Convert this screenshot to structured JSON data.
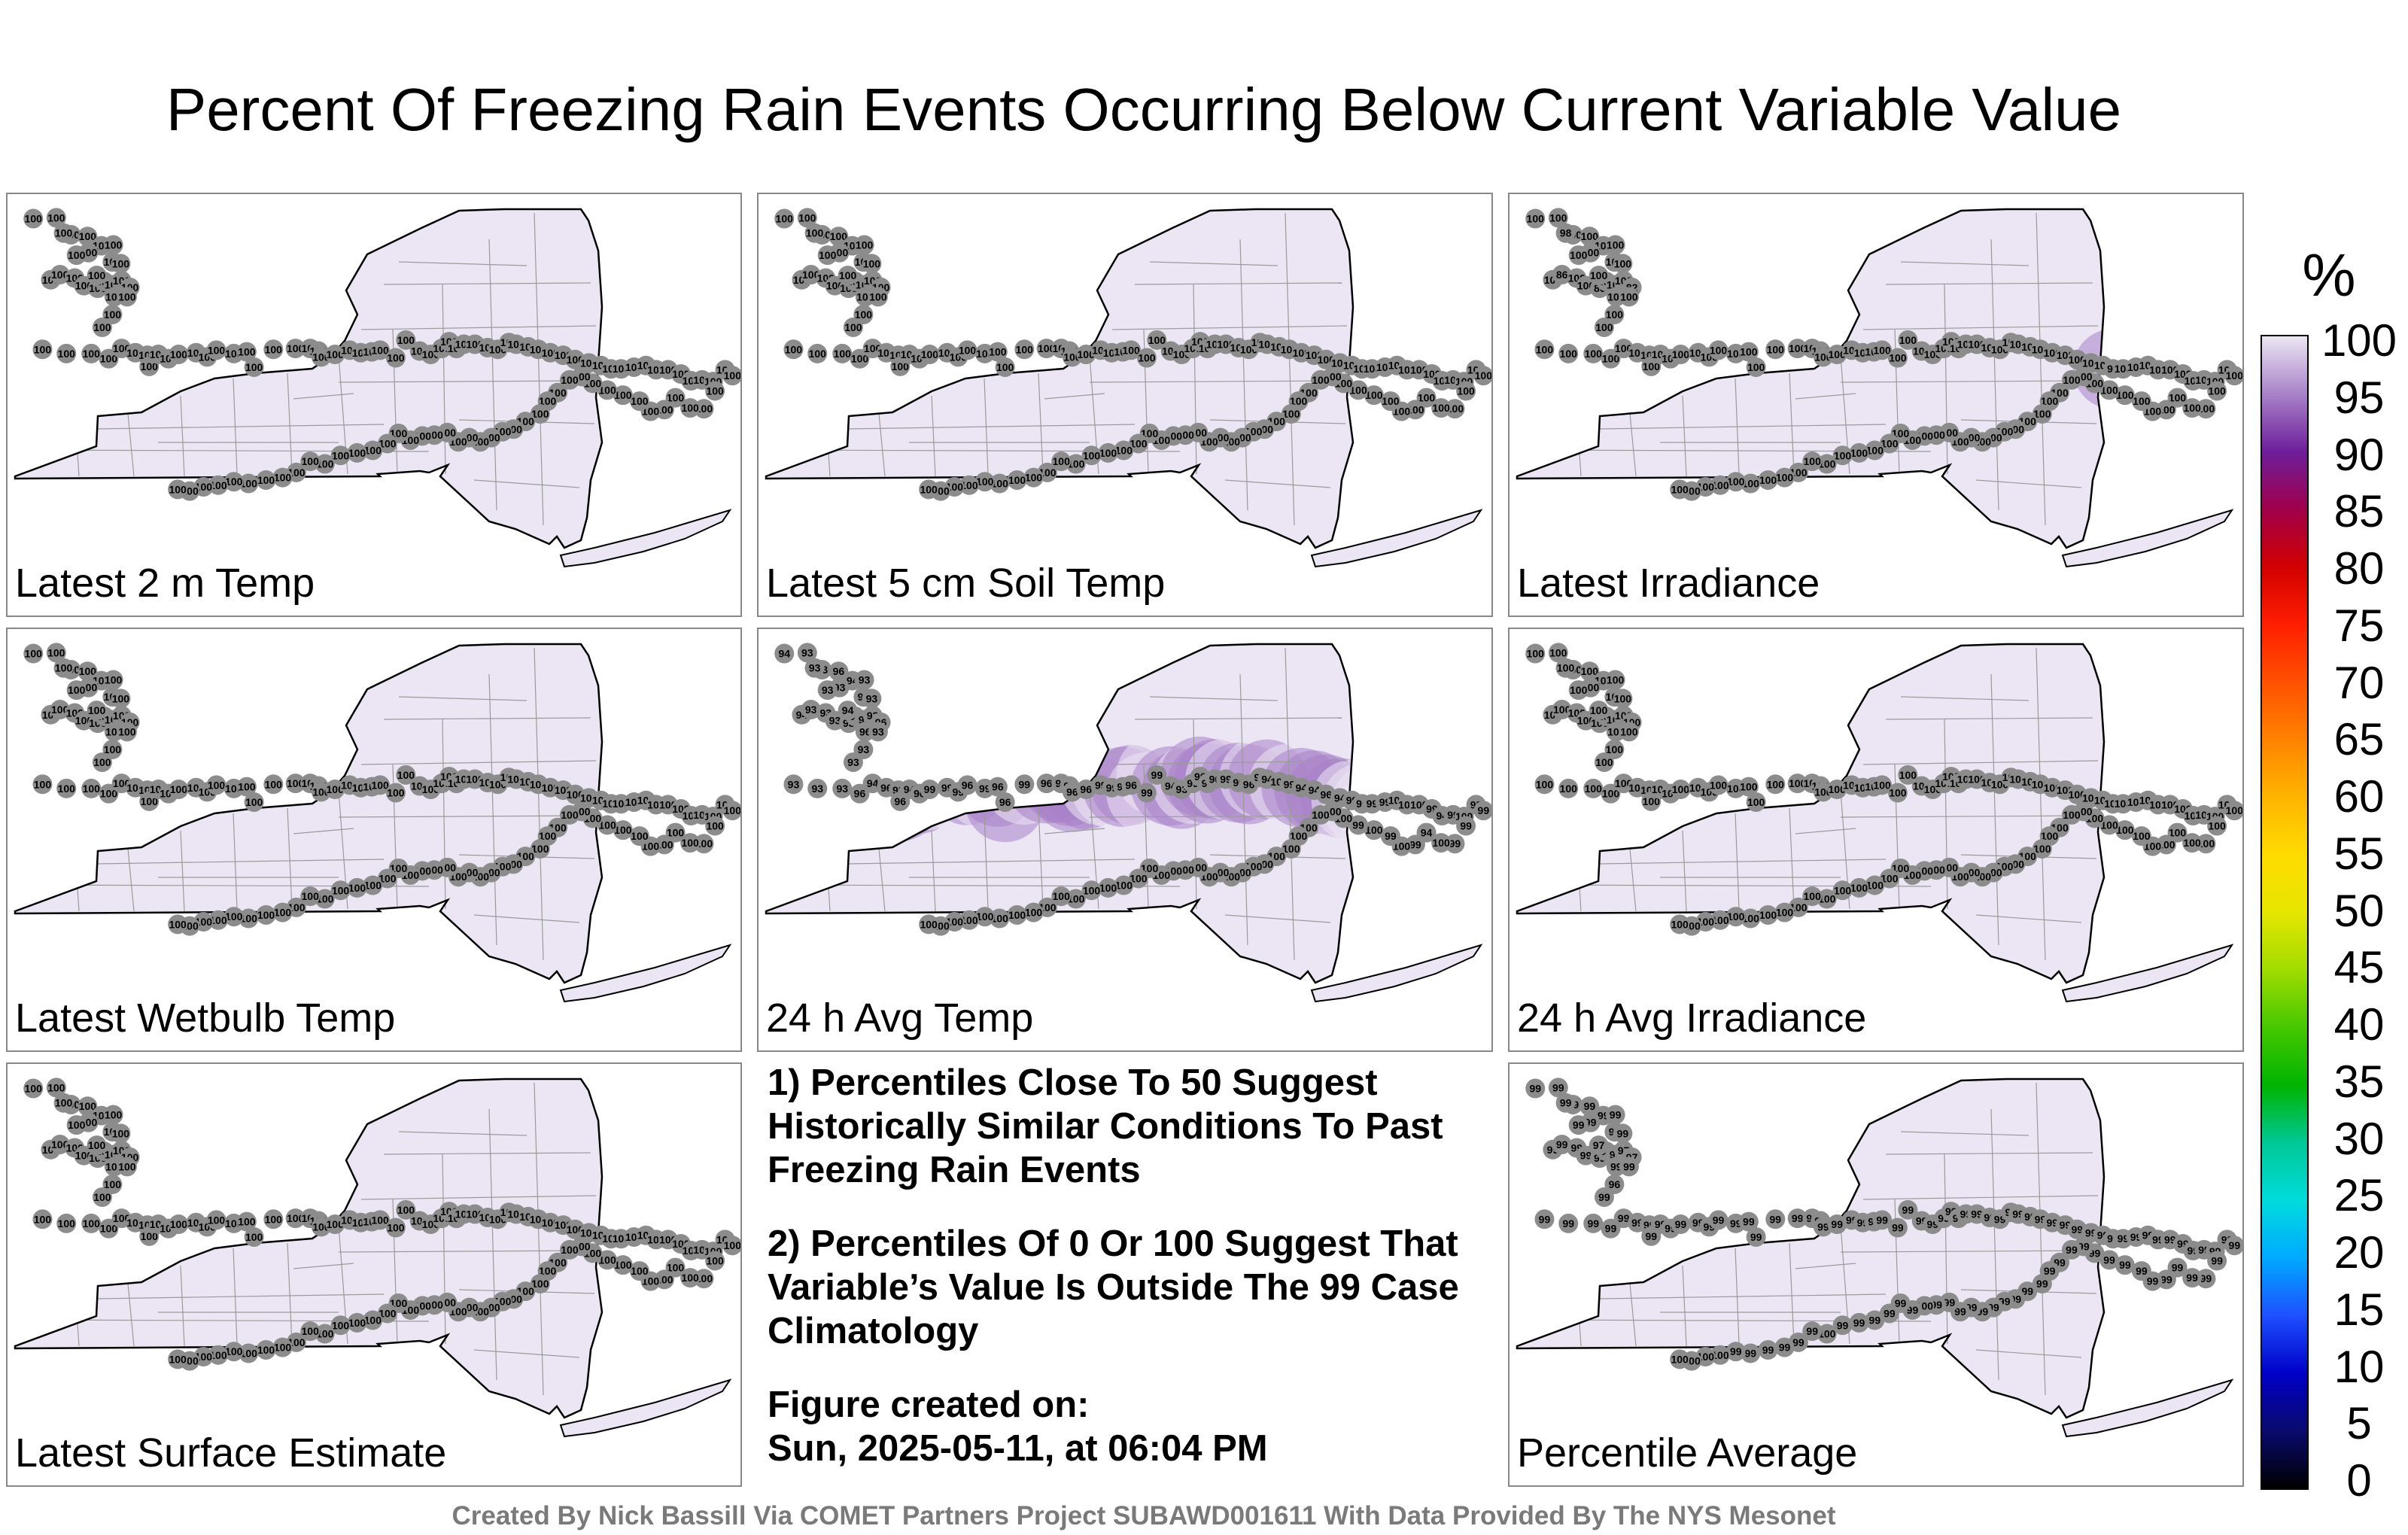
{
  "title": "Percent Of Freezing Rain Events Occurring Below Current Variable Value",
  "panels": [
    {
      "label": "Latest 2 m Temp",
      "values": [
        100,
        100,
        100,
        100,
        100,
        100,
        100,
        100,
        100,
        100,
        100,
        100,
        100,
        100,
        100,
        100,
        100,
        100,
        100,
        100,
        100,
        100,
        100,
        100,
        100,
        100,
        100,
        100,
        100,
        100,
        100,
        100,
        100,
        100,
        100,
        100,
        100,
        100,
        100,
        100,
        100,
        100,
        100,
        100,
        100,
        100,
        100,
        100,
        100,
        100,
        100,
        100,
        100,
        100,
        100,
        100,
        100,
        100,
        100,
        100,
        100,
        100,
        100,
        100,
        100,
        100,
        100,
        100,
        100,
        100,
        100,
        100,
        100,
        100,
        100,
        100,
        100,
        100,
        100,
        100,
        100,
        100,
        100,
        100,
        100,
        100,
        100,
        100,
        100,
        100,
        100,
        100,
        100,
        100,
        100,
        100,
        100,
        100,
        100,
        100,
        100,
        100,
        100,
        100,
        100,
        100,
        100,
        100,
        100,
        100,
        100,
        100,
        100,
        100,
        100,
        100,
        100,
        100,
        100,
        100,
        100,
        100,
        100,
        100,
        100,
        100
      ]
    },
    {
      "label": "Latest 5 cm Soil Temp",
      "values": [
        100,
        100,
        100,
        100,
        100,
        100,
        100,
        100,
        100,
        100,
        100,
        100,
        100,
        100,
        100,
        100,
        100,
        100,
        100,
        100,
        100,
        100,
        100,
        100,
        100,
        100,
        100,
        100,
        100,
        100,
        100,
        100,
        100,
        100,
        100,
        100,
        100,
        100,
        100,
        100,
        100,
        100,
        100,
        100,
        100,
        100,
        100,
        100,
        100,
        100,
        100,
        100,
        100,
        100,
        100,
        100,
        100,
        100,
        100,
        100,
        100,
        100,
        100,
        100,
        100,
        100,
        100,
        100,
        100,
        100,
        100,
        100,
        100,
        100,
        100,
        100,
        100,
        100,
        100,
        100,
        100,
        100,
        100,
        100,
        100,
        100,
        100,
        100,
        100,
        100,
        100,
        100,
        100,
        100,
        100,
        100,
        100,
        100,
        100,
        100,
        100,
        100,
        100,
        100,
        100,
        100,
        100,
        100,
        100,
        100,
        100,
        100,
        100,
        100,
        100,
        100,
        100,
        100,
        100,
        100,
        100,
        100,
        100,
        100,
        100,
        100
      ]
    },
    {
      "label": "Latest Irradiance",
      "values": [
        100,
        100,
        100,
        100,
        100,
        100,
        100,
        100,
        98,
        100,
        100,
        86,
        100,
        100,
        86,
        100,
        100,
        100,
        82,
        100,
        100,
        100,
        100,
        100,
        100,
        100,
        100,
        100,
        100,
        100,
        100,
        100,
        100,
        100,
        100,
        100,
        100,
        100,
        100,
        100,
        100,
        100,
        100,
        100,
        100,
        100,
        100,
        100,
        100,
        100,
        100,
        100,
        100,
        100,
        100,
        100,
        100,
        100,
        100,
        100,
        100,
        100,
        100,
        100,
        100,
        100,
        100,
        100,
        100,
        100,
        100,
        100,
        96,
        100,
        100,
        100,
        100,
        100,
        100,
        100,
        100,
        100,
        100,
        100,
        100,
        100,
        100,
        100,
        100,
        100,
        100,
        100,
        100,
        100,
        100,
        100,
        100,
        100,
        100,
        100,
        100,
        100,
        100,
        100,
        100,
        100,
        100,
        100,
        100,
        100,
        100,
        100,
        100,
        100,
        100,
        100,
        100,
        100,
        100,
        100,
        100,
        100,
        100,
        100,
        100,
        100
      ]
    },
    {
      "label": "Latest Wetbulb Temp",
      "values": [
        100,
        100,
        100,
        100,
        100,
        100,
        100,
        100,
        100,
        100,
        100,
        100,
        100,
        100,
        100,
        100,
        100,
        100,
        100,
        100,
        100,
        100,
        100,
        100,
        100,
        100,
        100,
        100,
        100,
        100,
        100,
        100,
        100,
        100,
        100,
        100,
        100,
        100,
        100,
        100,
        100,
        100,
        100,
        100,
        100,
        100,
        100,
        100,
        100,
        100,
        100,
        100,
        100,
        100,
        100,
        100,
        100,
        100,
        100,
        100,
        100,
        100,
        100,
        100,
        100,
        100,
        100,
        100,
        100,
        100,
        100,
        100,
        100,
        100,
        100,
        100,
        100,
        100,
        100,
        100,
        100,
        100,
        100,
        100,
        100,
        100,
        100,
        100,
        100,
        100,
        100,
        100,
        100,
        100,
        100,
        100,
        100,
        100,
        100,
        100,
        100,
        100,
        100,
        100,
        100,
        100,
        100,
        100,
        100,
        100,
        100,
        100,
        100,
        100,
        100,
        100,
        100,
        100,
        100,
        100,
        100,
        100,
        100,
        100,
        100,
        100
      ]
    },
    {
      "label": "24 h Avg Temp",
      "values": [
        94,
        93,
        93,
        96,
        94,
        93,
        93,
        93,
        93,
        93,
        94,
        93,
        93,
        93,
        93,
        94,
        93,
        93,
        96,
        93,
        94,
        96,
        93,
        93,
        93,
        93,
        93,
        93,
        96,
        94,
        96,
        93,
        96,
        94,
        96,
        99,
        99,
        99,
        96,
        99,
        96,
        96,
        99,
        96,
        93,
        96,
        96,
        96,
        99,
        99,
        96,
        96,
        99,
        99,
        94,
        93,
        99,
        96,
        96,
        96,
        99,
        96,
        96,
        99,
        94,
        100,
        99,
        94,
        94,
        96,
        94,
        99,
        99,
        99,
        99,
        100,
        100,
        100,
        99,
        94,
        99,
        100,
        99,
        99,
        99,
        99,
        100,
        94,
        99,
        100,
        99,
        100,
        99,
        100,
        100,
        100,
        100,
        100,
        100,
        100,
        100,
        100,
        100,
        100,
        100,
        100,
        100,
        100,
        100,
        100,
        100,
        100,
        100,
        100,
        100,
        100,
        100,
        100,
        100,
        100,
        100,
        100,
        100,
        100,
        100,
        100
      ]
    },
    {
      "label": "24 h Avg Irradiance",
      "values": [
        100,
        100,
        100,
        100,
        100,
        100,
        100,
        100,
        100,
        100,
        100,
        100,
        100,
        100,
        100,
        100,
        100,
        100,
        100,
        100,
        100,
        100,
        100,
        100,
        100,
        100,
        100,
        100,
        100,
        100,
        100,
        100,
        100,
        100,
        100,
        100,
        100,
        100,
        100,
        100,
        100,
        100,
        100,
        100,
        100,
        100,
        100,
        100,
        100,
        100,
        100,
        100,
        100,
        100,
        100,
        100,
        100,
        100,
        100,
        100,
        100,
        100,
        100,
        100,
        100,
        100,
        100,
        100,
        100,
        100,
        100,
        100,
        100,
        100,
        100,
        100,
        100,
        100,
        100,
        100,
        100,
        100,
        100,
        100,
        100,
        100,
        100,
        100,
        100,
        100,
        100,
        100,
        100,
        100,
        100,
        100,
        100,
        100,
        100,
        100,
        100,
        100,
        100,
        100,
        100,
        100,
        100,
        100,
        100,
        100,
        100,
        100,
        100,
        100,
        100,
        100,
        100,
        100,
        100,
        100,
        100,
        100,
        100,
        100,
        100,
        100
      ]
    },
    {
      "label": "Latest Surface Estimate",
      "values": [
        100,
        100,
        100,
        100,
        100,
        100,
        100,
        100,
        100,
        100,
        100,
        100,
        100,
        100,
        100,
        100,
        100,
        100,
        100,
        100,
        100,
        100,
        100,
        100,
        100,
        100,
        100,
        100,
        100,
        100,
        100,
        100,
        100,
        100,
        100,
        100,
        100,
        100,
        100,
        100,
        100,
        100,
        100,
        100,
        100,
        100,
        100,
        100,
        100,
        100,
        100,
        100,
        100,
        100,
        100,
        100,
        100,
        100,
        100,
        100,
        100,
        100,
        100,
        100,
        100,
        100,
        100,
        100,
        100,
        100,
        100,
        100,
        100,
        100,
        100,
        100,
        100,
        100,
        100,
        100,
        100,
        100,
        100,
        100,
        100,
        100,
        100,
        100,
        100,
        100,
        100,
        100,
        100,
        100,
        100,
        100,
        100,
        100,
        100,
        100,
        100,
        100,
        100,
        100,
        100,
        100,
        100,
        100,
        100,
        100,
        100,
        100,
        100,
        100,
        100,
        100,
        100,
        100,
        100,
        100,
        100,
        100,
        100,
        100,
        100,
        100
      ]
    },
    {
      "label": "Percentile Average",
      "values": [
        99,
        99,
        99,
        99,
        99,
        99,
        99,
        99,
        99,
        99,
        99,
        99,
        99,
        99,
        99,
        99,
        99,
        97,
        97,
        99,
        97,
        99,
        99,
        96,
        99,
        99,
        99,
        99,
        99,
        99,
        99,
        99,
        99,
        99,
        99,
        99,
        99,
        99,
        99,
        99,
        99,
        99,
        99,
        99,
        99,
        99,
        99,
        99,
        99,
        99,
        99,
        99,
        99,
        99,
        99,
        99,
        99,
        99,
        99,
        99,
        99,
        99,
        99,
        99,
        99,
        99,
        99,
        99,
        99,
        99,
        99,
        99,
        99,
        99,
        99,
        99,
        99,
        99,
        99,
        99,
        99,
        99,
        99,
        99,
        99,
        99,
        99,
        99,
        99,
        99,
        99,
        99,
        99,
        99,
        99,
        99,
        99,
        99,
        99,
        99,
        99,
        99,
        99,
        99,
        99,
        99,
        99,
        99,
        100,
        99,
        99,
        99,
        99,
        99,
        99,
        100,
        99,
        99,
        99,
        99,
        99,
        99,
        100,
        100,
        100,
        100
      ]
    }
  ],
  "notes": [
    "1) Percentiles Close To 50 Suggest Historically Similar Conditions To Past Freezing Rain Events",
    "2) Percentiles Of 0 Or 100 Suggest That Variable’s Value Is Outside The 99 Case Climatology",
    "Figure created on:",
    "Sun, 2025-05-11, at 06:04 PM"
  ],
  "footer": "Created By Nick Bassill Via COMET Partners Project SUBAWD001611 With Data Provided By The NYS Mesonet",
  "colorbar": {
    "title": "%",
    "ticks": [
      "0",
      "5",
      "10",
      "15",
      "20",
      "25",
      "30",
      "35",
      "40",
      "45",
      "50",
      "55",
      "60",
      "65",
      "70",
      "75",
      "80",
      "85",
      "90",
      "95",
      "100"
    ],
    "colors": [
      "#000000",
      "#0a0a6e",
      "#0000c8",
      "#1e50ff",
      "#00aaff",
      "#00dcdc",
      "#00c896",
      "#00b400",
      "#46c800",
      "#a0dc00",
      "#e6e600",
      "#ffdc00",
      "#ffb400",
      "#ff8200",
      "#ff5000",
      "#ff1e00",
      "#d20000",
      "#a0004b",
      "#6e1e9b",
      "#a882c8",
      "#ece6f4"
    ]
  }
}
